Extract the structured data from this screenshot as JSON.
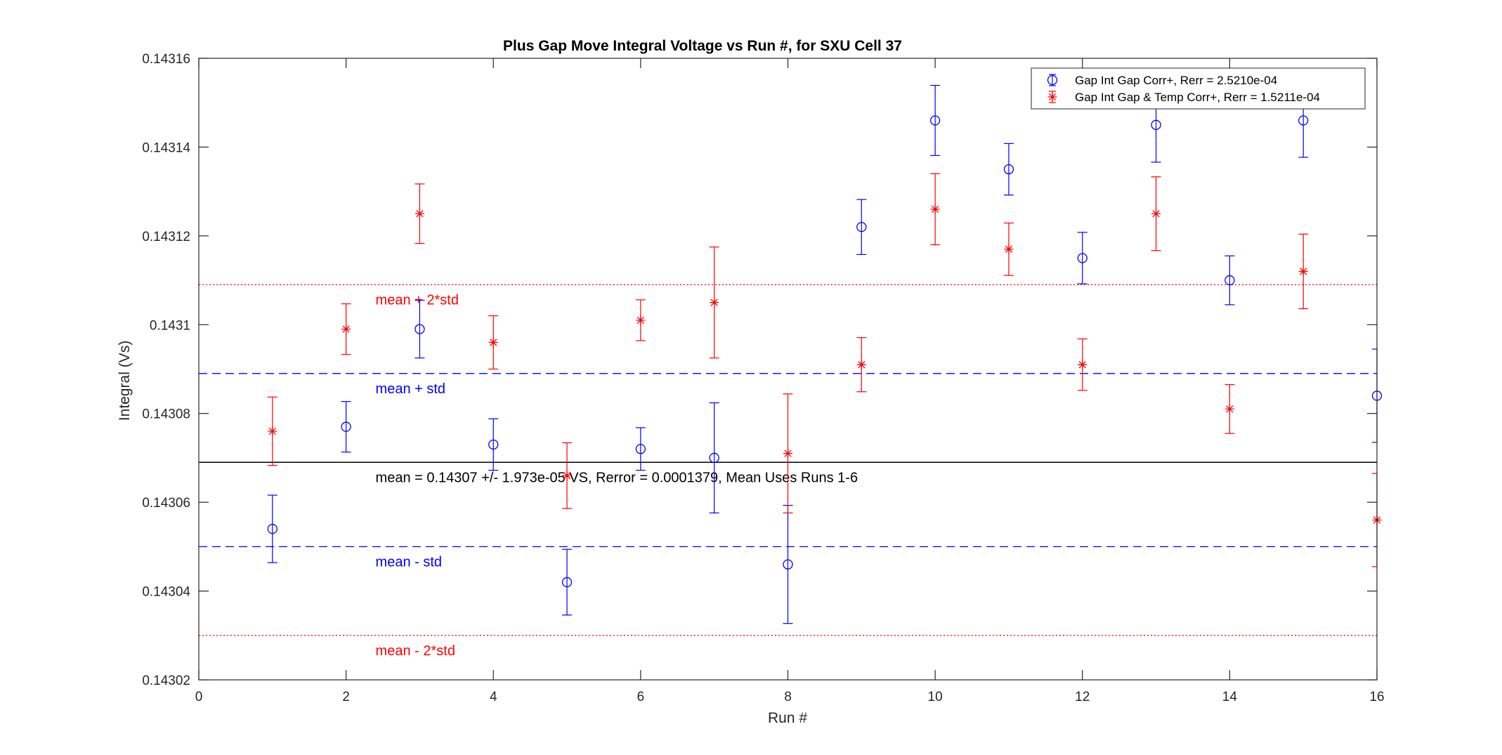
{
  "chart_data": {
    "type": "scatter",
    "title": "Plus Gap Move Integral Voltage vs Run #, for SXU Cell 37",
    "xlabel": "Run #",
    "ylabel": "Integral (Vs)",
    "xlim": [
      0,
      16
    ],
    "ylim": [
      0.14302,
      0.14316
    ],
    "xticks": [
      0,
      2,
      4,
      6,
      8,
      10,
      12,
      14,
      16
    ],
    "xtick_labels": [
      "0",
      "2",
      "4",
      "6",
      "8",
      "10",
      "12",
      "14",
      "16"
    ],
    "yticks": [
      0.14302,
      0.14304,
      0.14306,
      0.14308,
      0.1431,
      0.14312,
      0.14314,
      0.14316
    ],
    "ytick_labels": [
      "0.14302",
      "0.14304",
      "0.14306",
      "0.14308",
      "0.1431",
      "0.14312",
      "0.14314",
      "0.14316"
    ],
    "grid": false,
    "legend_position": "top-right",
    "series": [
      {
        "name": "Gap Int Gap Corr+, Rerr = 2.5210e-04",
        "marker": "circle",
        "color": "#0000ff",
        "x": [
          1,
          2,
          3,
          4,
          5,
          6,
          7,
          8,
          9,
          10,
          11,
          12,
          13,
          14,
          15,
          16
        ],
        "y": [
          0.143054,
          0.143077,
          0.143099,
          0.143073,
          0.143042,
          0.143072,
          0.14307,
          0.143046,
          0.143122,
          0.143146,
          0.143135,
          0.143115,
          0.143145,
          0.14311,
          0.143146,
          0.143084
        ],
        "err": [
          7.6e-06,
          5.7e-06,
          6.5e-06,
          5.8e-06,
          7.4e-06,
          4.8e-06,
          1.24e-05,
          1.33e-05,
          6.2e-06,
          7.9e-06,
          5.8e-06,
          5.8e-06,
          8.4e-06,
          5.5e-06,
          8.3e-06,
          1.05e-05
        ]
      },
      {
        "name": "Gap Int Gap & Temp  Corr+, Rerr = 1.5211e-04",
        "marker": "asterisk",
        "color": "#ff0000",
        "x": [
          1,
          2,
          3,
          4,
          5,
          6,
          7,
          8,
          9,
          10,
          11,
          12,
          13,
          14,
          15,
          16
        ],
        "y": [
          0.143076,
          0.143099,
          0.143125,
          0.143096,
          0.143066,
          0.143101,
          0.143105,
          0.143071,
          0.143091,
          0.143126,
          0.143117,
          0.143091,
          0.143125,
          0.143081,
          0.143112,
          0.143056
        ],
        "err": [
          7.7e-06,
          5.7e-06,
          6.7e-06,
          6e-06,
          7.4e-06,
          4.6e-06,
          1.25e-05,
          1.34e-05,
          6.1e-06,
          8e-06,
          5.9e-06,
          5.8e-06,
          8.3e-06,
          5.5e-06,
          8.4e-06,
          1.05e-05
        ]
      }
    ],
    "reference_lines": [
      {
        "y": 0.143069,
        "style": "solid",
        "color": "#000000",
        "label": "mean = 0.14307 +/- 1.973e-05 VS, Rerror = 0.0001379, Mean Uses Runs 1-6"
      },
      {
        "y": 0.143089,
        "style": "dashed",
        "color": "#0000ff",
        "label": "mean + std"
      },
      {
        "y": 0.14305,
        "style": "dashed",
        "color": "#0000ff",
        "label": "mean - std"
      },
      {
        "y": 0.143109,
        "style": "dotted",
        "color": "#ff0000",
        "label": "mean + 2*std"
      },
      {
        "y": 0.14303,
        "style": "dotted",
        "color": "#ff0000",
        "label": "mean - 2*std"
      }
    ]
  }
}
